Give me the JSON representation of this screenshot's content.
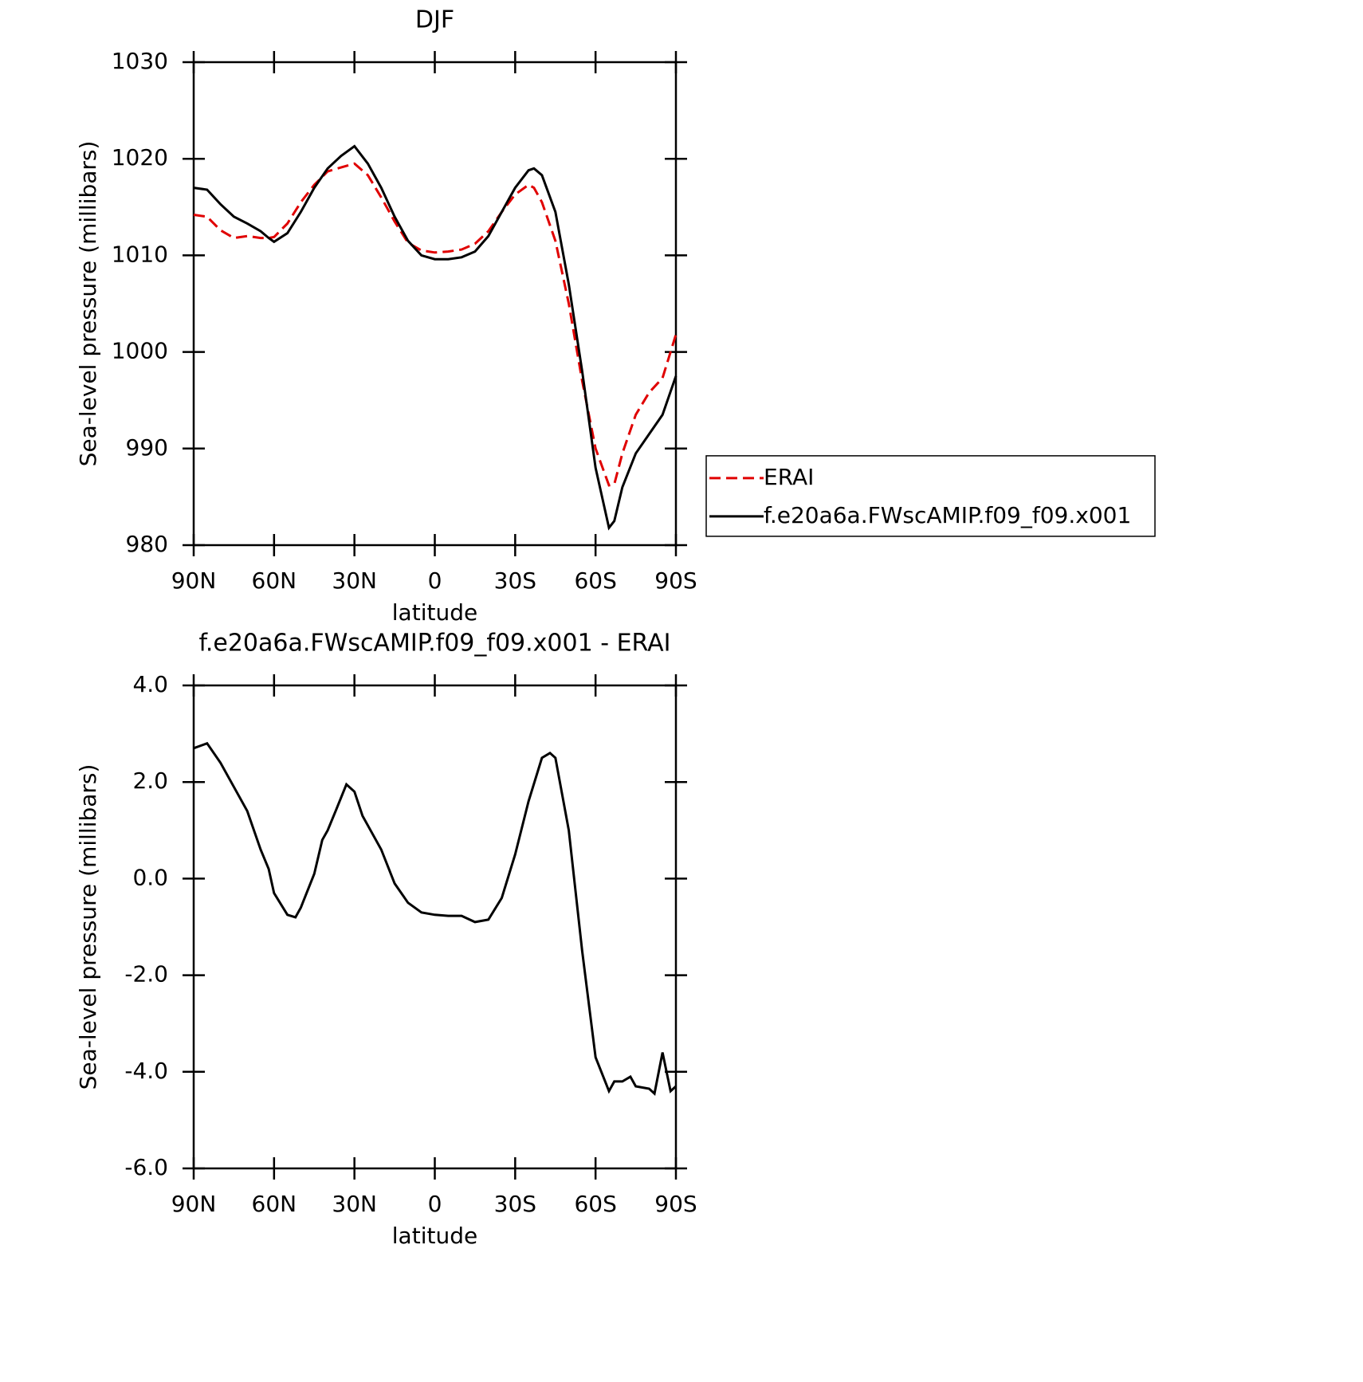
{
  "chart_data": [
    {
      "type": "line",
      "title": "DJF",
      "xlabel": "latitude",
      "ylabel": "Sea-level pressure (millibars)",
      "x": [
        90,
        85,
        80,
        75,
        70,
        65,
        62,
        60,
        55,
        50,
        45,
        40,
        35,
        30,
        25,
        20,
        15,
        10,
        5,
        0,
        -5,
        -10,
        -15,
        -20,
        -25,
        -30,
        -35,
        -37,
        -40,
        -45,
        -50,
        -55,
        -60,
        -65,
        -67,
        -70,
        -75,
        -80,
        -85,
        -90
      ],
      "series": [
        {
          "name": "ERAI",
          "color": "#e00000",
          "dash": true,
          "values": [
            1014.2,
            1014.0,
            1012.6,
            1011.8,
            1012.0,
            1011.8,
            1011.8,
            1011.9,
            1013.3,
            1015.5,
            1017.3,
            1018.7,
            1019.1,
            1019.5,
            1018.3,
            1016.0,
            1013.5,
            1011.3,
            1010.5,
            1010.3,
            1010.4,
            1010.6,
            1011.2,
            1012.5,
            1014.5,
            1016.3,
            1017.3,
            1017.0,
            1015.5,
            1011.5,
            1005.0,
            997.0,
            990.0,
            986.2,
            986.3,
            989.5,
            993.5,
            995.8,
            997.3,
            1001.8
          ]
        },
        {
          "name": "f.e20a6a.FWscAMIP.f09_f09.x001",
          "color": "#000000",
          "dash": false,
          "values": [
            1017.0,
            1016.8,
            1015.3,
            1014.0,
            1013.3,
            1012.5,
            1011.8,
            1011.4,
            1012.3,
            1014.5,
            1017.0,
            1019.0,
            1020.3,
            1021.3,
            1019.5,
            1017.0,
            1014.0,
            1011.5,
            1010.0,
            1009.6,
            1009.6,
            1009.8,
            1010.4,
            1012.0,
            1014.5,
            1017.0,
            1018.8,
            1019.0,
            1018.3,
            1014.5,
            1007.0,
            998.0,
            988.0,
            981.8,
            982.5,
            986.0,
            989.5,
            991.5,
            993.5,
            997.5
          ]
        }
      ],
      "xlim": [
        90,
        -90
      ],
      "xticks": [
        {
          "value": 90,
          "label": "90N"
        },
        {
          "value": 60,
          "label": "60N"
        },
        {
          "value": 30,
          "label": "30N"
        },
        0,
        {
          "value": -30,
          "label": "30S"
        },
        {
          "value": -60,
          "label": "60S"
        },
        {
          "value": -90,
          "label": "90S"
        }
      ],
      "ylim": [
        980,
        1030
      ],
      "yticks": [
        980,
        990,
        1000,
        1010,
        1020,
        1030
      ],
      "legend": "right"
    },
    {
      "type": "line",
      "title": "f.e20a6a.FWscAMIP.f09_f09.x001 - ERAI",
      "xlabel": "latitude",
      "ylabel": "Sea-level pressure (millibars)",
      "x": [
        90,
        85,
        80,
        75,
        70,
        65,
        62,
        60,
        55,
        52,
        50,
        45,
        42,
        40,
        37,
        33,
        30,
        27,
        25,
        20,
        15,
        10,
        5,
        0,
        -5,
        -10,
        -15,
        -20,
        -25,
        -30,
        -35,
        -40,
        -43,
        -45,
        -50,
        -55,
        -60,
        -65,
        -67,
        -70,
        -73,
        -75,
        -80,
        -82,
        -85,
        -88,
        -90
      ],
      "series": [
        {
          "name": "f.e20a6a.FWscAMIP.f09_f09.x001 - ERAI",
          "color": "#000000",
          "dash": false,
          "values": [
            2.7,
            2.8,
            2.4,
            1.9,
            1.4,
            0.6,
            0.2,
            -0.3,
            -0.75,
            -0.8,
            -0.6,
            0.1,
            0.8,
            1.0,
            1.4,
            1.95,
            1.8,
            1.3,
            1.1,
            0.6,
            -0.1,
            -0.5,
            -0.7,
            -0.75,
            -0.77,
            -0.77,
            -0.9,
            -0.85,
            -0.4,
            0.5,
            1.6,
            2.5,
            2.6,
            2.5,
            1.0,
            -1.5,
            -3.7,
            -4.4,
            -4.2,
            -4.2,
            -4.1,
            -4.3,
            -4.35,
            -4.45,
            -3.6,
            -4.4,
            -4.3
          ]
        }
      ],
      "xlim": [
        90,
        -90
      ],
      "xticks": [
        {
          "value": 90,
          "label": "90N"
        },
        {
          "value": 60,
          "label": "60N"
        },
        {
          "value": 30,
          "label": "30N"
        },
        0,
        {
          "value": -30,
          "label": "30S"
        },
        {
          "value": -60,
          "label": "60S"
        },
        {
          "value": -90,
          "label": "90S"
        }
      ],
      "ylim": [
        -6,
        4
      ],
      "yticks": [
        {
          "value": -6,
          "label": "-6.0"
        },
        {
          "value": -4,
          "label": "-4.0"
        },
        {
          "value": -2,
          "label": "-2.0"
        },
        {
          "value": 0,
          "label": "0.0"
        },
        {
          "value": 2,
          "label": "2.0"
        },
        {
          "value": 4,
          "label": "4.0"
        }
      ]
    }
  ]
}
